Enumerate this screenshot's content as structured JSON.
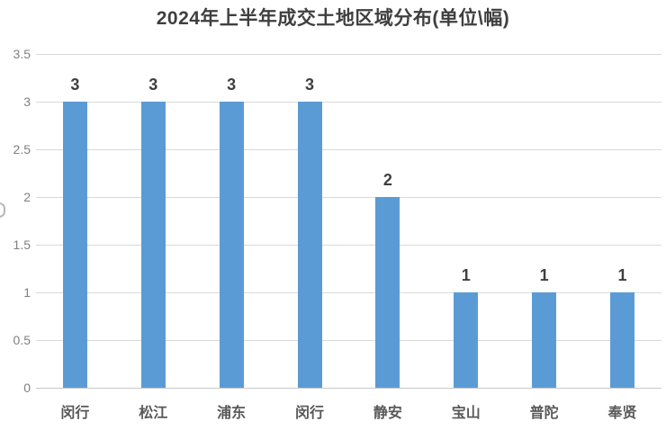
{
  "chart_data": {
    "type": "bar",
    "title": "2024年上半年成交土地区域分布(单位\\幅)",
    "categories": [
      "闵行",
      "松江",
      "浦东",
      "闵行",
      "静安",
      "宝山",
      "普陀",
      "奉贤"
    ],
    "values": [
      3,
      3,
      3,
      3,
      2,
      1,
      1,
      1
    ],
    "xlabel": "",
    "ylabel": "",
    "ylim": [
      0,
      3.5
    ],
    "yticks": [
      0,
      0.5,
      1,
      1.5,
      2,
      2.5,
      3,
      3.5
    ],
    "grid": true,
    "legend": "none",
    "value_labels": true,
    "bar_color": "#5b9bd5",
    "gridline_color": "#d9d9d9",
    "title_color": "#3f3f3f",
    "tick_label_color": "#808080",
    "category_label_color": "#595959"
  }
}
